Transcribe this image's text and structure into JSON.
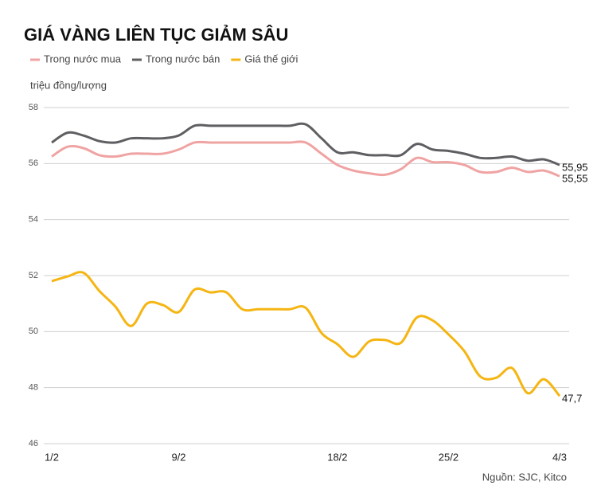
{
  "chart_data": {
    "type": "line",
    "title": "GIÁ VÀNG LIÊN TỤC GIẢM SÂU",
    "y_label": "triệu đồng/lượng",
    "source": "Nguồn: SJC, Kitco",
    "categories": [
      "1/2",
      null,
      null,
      null,
      null,
      null,
      null,
      null,
      "9/2",
      null,
      null,
      null,
      null,
      null,
      null,
      null,
      null,
      null,
      "18/2",
      null,
      null,
      null,
      null,
      null,
      null,
      "25/2",
      null,
      null,
      null,
      null,
      null,
      null,
      "4/3"
    ],
    "ylim": [
      46,
      58
    ],
    "yticks": [
      46,
      48,
      50,
      52,
      54,
      56,
      58
    ],
    "grid": true,
    "series": [
      {
        "name": "Trong nước mua",
        "color": "#f0a3a3",
        "values": [
          56.25,
          56.6,
          56.55,
          56.3,
          56.25,
          56.35,
          56.35,
          56.35,
          56.5,
          56.75,
          56.75,
          56.75,
          56.75,
          56.75,
          56.75,
          56.75,
          56.75,
          56.35,
          55.95,
          55.75,
          55.65,
          55.6,
          55.8,
          56.2,
          56.05,
          56.05,
          55.95,
          55.7,
          55.7,
          55.85,
          55.7,
          55.75,
          55.55
        ],
        "value_labels": [
          null,
          null,
          null,
          null,
          null,
          null,
          null,
          null,
          null,
          null,
          null,
          null,
          null,
          null,
          null,
          null,
          null,
          null,
          null,
          null,
          null,
          null,
          null,
          null,
          null,
          null,
          null,
          null,
          null,
          null,
          null,
          null,
          "55,55"
        ]
      },
      {
        "name": "Trong nước bán",
        "color": "#5f5f63",
        "values": [
          56.75,
          57.1,
          57.0,
          56.8,
          56.75,
          56.9,
          56.9,
          56.9,
          57.0,
          57.35,
          57.35,
          57.35,
          57.35,
          57.35,
          57.35,
          57.35,
          57.4,
          56.9,
          56.4,
          56.4,
          56.3,
          56.3,
          56.3,
          56.7,
          56.5,
          56.45,
          56.35,
          56.2,
          56.2,
          56.25,
          56.1,
          56.15,
          55.95
        ],
        "value_labels": [
          null,
          null,
          null,
          null,
          null,
          null,
          null,
          null,
          null,
          null,
          null,
          null,
          null,
          null,
          null,
          null,
          null,
          null,
          null,
          null,
          null,
          null,
          null,
          null,
          null,
          null,
          null,
          null,
          null,
          null,
          null,
          null,
          "55,95"
        ]
      },
      {
        "name": "Giá thế giới",
        "color": "#f5b512",
        "values": [
          51.8,
          51.97,
          52.1,
          51.45,
          50.9,
          50.2,
          51.0,
          50.95,
          50.7,
          51.5,
          51.4,
          51.4,
          50.8,
          50.8,
          50.8,
          50.8,
          50.85,
          49.95,
          49.55,
          49.1,
          49.65,
          49.7,
          49.6,
          50.5,
          50.4,
          49.9,
          49.3,
          48.4,
          48.35,
          48.7,
          47.8,
          48.3,
          47.7
        ],
        "value_labels": [
          null,
          null,
          null,
          null,
          null,
          null,
          null,
          null,
          null,
          null,
          null,
          null,
          null,
          null,
          null,
          null,
          null,
          null,
          null,
          null,
          null,
          null,
          null,
          null,
          null,
          null,
          null,
          null,
          null,
          null,
          null,
          null,
          "47,7"
        ]
      }
    ]
  }
}
